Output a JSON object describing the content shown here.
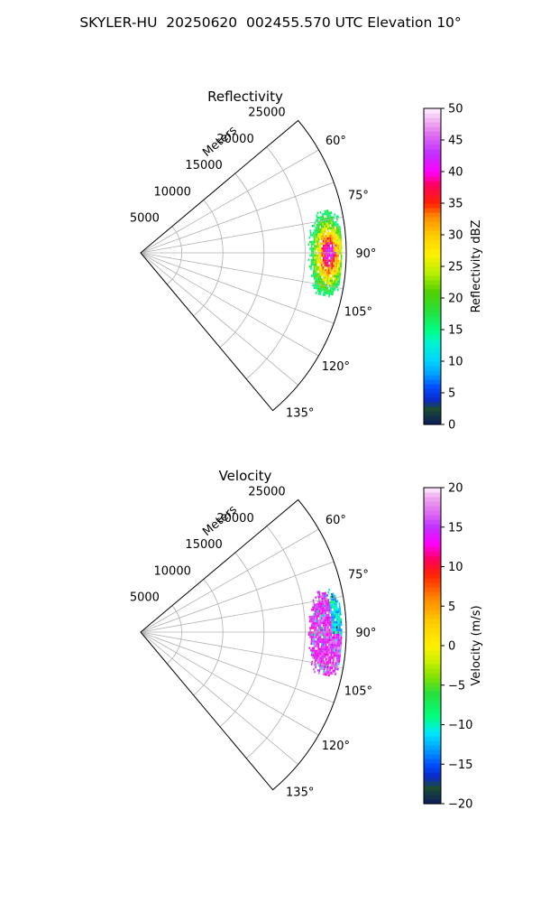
{
  "suptitle": "SKYLER-HU  20250620  002455.570 UTC Elevation 10°",
  "chart_data": [
    {
      "type": "heatmap",
      "title": "Reflectivity",
      "radial_label": "Meters",
      "radial_ticks": [
        "5000",
        "10000",
        "15000",
        "20000",
        "25000"
      ],
      "radial_range": [
        0,
        25000
      ],
      "angle_range_deg": [
        50,
        140
      ],
      "angle_ticks": [
        "60°",
        "75°",
        "90°",
        "105°",
        "120°",
        "135°"
      ],
      "grid": true,
      "echo": {
        "azimuth_range_deg": [
          77,
          103
        ],
        "range_m": [
          20000,
          24500
        ]
      },
      "colorbar": {
        "label": "Reflectivity dBZ",
        "vmin": 0,
        "vmax": 50,
        "ticks": [
          "0",
          "5",
          "10",
          "15",
          "20",
          "25",
          "30",
          "35",
          "40",
          "45",
          "50"
        ],
        "stops": [
          {
            "v": 0,
            "c": "#0a1a5c"
          },
          {
            "v": 2.5,
            "c": "#1c4d33"
          },
          {
            "v": 4,
            "c": "#0a2acc"
          },
          {
            "v": 6,
            "c": "#0050ff"
          },
          {
            "v": 8,
            "c": "#00a0ff"
          },
          {
            "v": 10,
            "c": "#00d2ff"
          },
          {
            "v": 13,
            "c": "#00f5d0"
          },
          {
            "v": 15,
            "c": "#00ff80"
          },
          {
            "v": 18,
            "c": "#28e03c"
          },
          {
            "v": 21,
            "c": "#50d000"
          },
          {
            "v": 24,
            "c": "#b8f000"
          },
          {
            "v": 27,
            "c": "#fff000"
          },
          {
            "v": 30,
            "c": "#ffcc00"
          },
          {
            "v": 33,
            "c": "#ff8800"
          },
          {
            "v": 35,
            "c": "#ff2200"
          },
          {
            "v": 38,
            "c": "#ff0060"
          },
          {
            "v": 40,
            "c": "#ff00ff"
          },
          {
            "v": 43,
            "c": "#c030ff"
          },
          {
            "v": 46,
            "c": "#e070f0"
          },
          {
            "v": 48,
            "c": "#f0b0f0"
          },
          {
            "v": 50,
            "c": "#fff0ff"
          }
        ]
      }
    },
    {
      "type": "heatmap",
      "title": "Velocity",
      "radial_label": "Meters",
      "radial_ticks": [
        "5000",
        "10000",
        "15000",
        "20000",
        "25000"
      ],
      "radial_range": [
        0,
        25000
      ],
      "angle_range_deg": [
        50,
        140
      ],
      "angle_ticks": [
        "60°",
        "75°",
        "90°",
        "105°",
        "120°",
        "135°"
      ],
      "grid": true,
      "echo": {
        "azimuth_range_deg": [
          77,
          103
        ],
        "range_m": [
          20000,
          24500
        ]
      },
      "colorbar": {
        "label": "Velocity (m/s)",
        "vmin": -20,
        "vmax": 20,
        "ticks": [
          "−20",
          "−15",
          "−10",
          "−5",
          "0",
          "5",
          "10",
          "15",
          "20"
        ],
        "stops": [
          {
            "v": -20,
            "c": "#0a1a5c"
          },
          {
            "v": -18,
            "c": "#1c4d33"
          },
          {
            "v": -16.5,
            "c": "#0a2acc"
          },
          {
            "v": -15,
            "c": "#0050ff"
          },
          {
            "v": -13,
            "c": "#00a0ff"
          },
          {
            "v": -11,
            "c": "#00e8ff"
          },
          {
            "v": -9,
            "c": "#00ff80"
          },
          {
            "v": -6,
            "c": "#28e03c"
          },
          {
            "v": -4,
            "c": "#80e000"
          },
          {
            "v": -2,
            "c": "#c8f000"
          },
          {
            "v": 0,
            "c": "#fff000"
          },
          {
            "v": 3,
            "c": "#ffcc00"
          },
          {
            "v": 6,
            "c": "#ff8800"
          },
          {
            "v": 9,
            "c": "#ff2200"
          },
          {
            "v": 11,
            "c": "#ff0060"
          },
          {
            "v": 13,
            "c": "#ff00ff"
          },
          {
            "v": 15,
            "c": "#c030ff"
          },
          {
            "v": 17,
            "c": "#e070f0"
          },
          {
            "v": 19,
            "c": "#f0b0f0"
          },
          {
            "v": 20,
            "c": "#fff0ff"
          }
        ]
      }
    }
  ]
}
